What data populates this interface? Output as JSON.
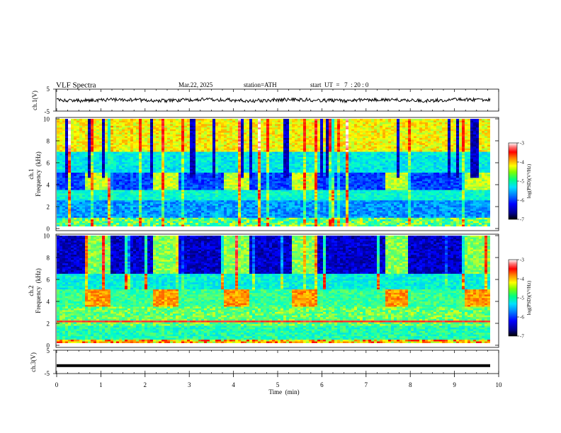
{
  "header": {
    "title": "VLF  Spectra",
    "date": "Mar.22, 2025",
    "station": "station=ATH",
    "start": "start  UT  =   7  : 20 : 0"
  },
  "colors": {
    "palette": [
      "#000000",
      "#00008b",
      "#0000ff",
      "#0064ff",
      "#00c8ff",
      "#00ffc8",
      "#64ff64",
      "#ffff00",
      "#ff8000",
      "#ff0000",
      "#ff4040",
      "#ffffff"
    ]
  },
  "chart_data": [
    {
      "id": "ch1-waveform",
      "type": "line",
      "ylabel": "ch.1(V)",
      "ylim": [
        -5,
        5
      ],
      "yticks": [
        "5",
        "-5"
      ],
      "xlim": [
        0,
        10
      ],
      "trace_level": 0
    },
    {
      "id": "ch1-spectrogram",
      "type": "heatmap",
      "ylabel": "ch.1\nFrequency  (kHz)",
      "ylabel_line1": "ch.1",
      "ylabel_line2": "Frequency  (kHz)",
      "ylim": [
        0,
        10
      ],
      "yticks": [
        "0",
        "2",
        "4",
        "6",
        "8",
        "10"
      ],
      "xlim": [
        0,
        9.8
      ],
      "colorbar": {
        "label": "log(PSD)(V²/Hz)",
        "range": [
          -7,
          -3
        ],
        "ticks": [
          "-3",
          "-4",
          "-5",
          "-6",
          "-7"
        ]
      },
      "pulse_intervals_min": [
        [
          0.62,
          1.22
        ],
        [
          2.15,
          2.73
        ],
        [
          3.75,
          4.33
        ],
        [
          5.3,
          5.88
        ],
        [
          7.45,
          7.93
        ],
        [
          9.2,
          9.8
        ]
      ]
    },
    {
      "id": "ch2-spectrogram",
      "type": "heatmap",
      "ylabel": "ch.2\nFrequency  (kHz)",
      "ylabel_line1": "ch.2",
      "ylabel_line2": "Frequency  (kHz)",
      "ylim": [
        0,
        10
      ],
      "yticks": [
        "0",
        "2",
        "4",
        "6",
        "8",
        "10"
      ],
      "xlim": [
        0,
        9.8
      ],
      "colorbar": {
        "label": "log(PSD)(V²/Hz)",
        "range": [
          -7,
          -3
        ],
        "ticks": [
          "-3",
          "-4",
          "-5",
          "-6",
          "-7"
        ]
      },
      "quiet_intervals_min": [
        [
          0.62,
          1.22
        ],
        [
          2.15,
          2.73
        ],
        [
          3.75,
          4.33
        ],
        [
          5.3,
          5.88
        ],
        [
          7.45,
          7.93
        ],
        [
          9.2,
          9.8
        ]
      ]
    },
    {
      "id": "ch3-waveform",
      "type": "line",
      "ylabel": "ch.3(V)",
      "ylim": [
        -5,
        5
      ],
      "yticks": [
        "5",
        "-5"
      ],
      "xlim": [
        0,
        10
      ],
      "trace_level": -1.6
    }
  ],
  "xaxis": {
    "label": "Time  (min)",
    "range": [
      0,
      10
    ],
    "ticks": [
      "0",
      "1",
      "2",
      "3",
      "4",
      "5",
      "6",
      "7",
      "8",
      "9",
      "10"
    ]
  }
}
